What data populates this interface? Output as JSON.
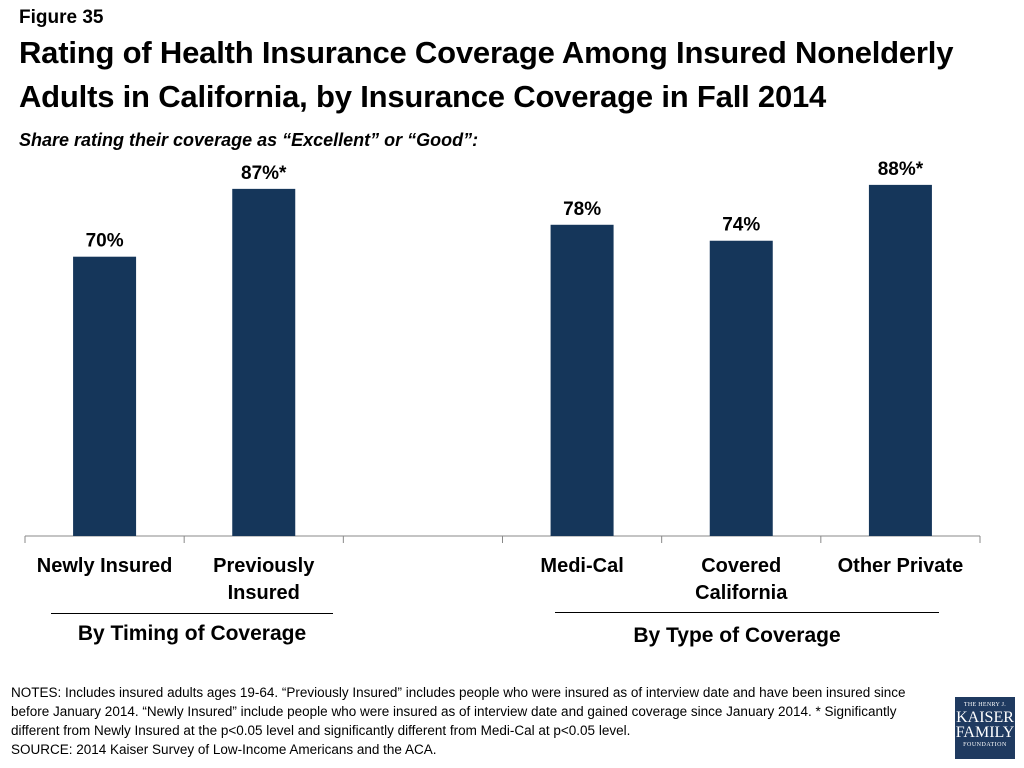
{
  "figure_label": "Figure 35",
  "title": "Rating of Health Insurance Coverage Among Insured Nonelderly Adults in California, by Insurance Coverage in Fall 2014",
  "subtitle": "Share rating their coverage as “Excellent” or “Good”:",
  "chart_data": {
    "type": "bar",
    "categories": [
      "Newly Insured",
      "Previously Insured",
      "",
      "Medi-Cal",
      "Covered California",
      "Other Private"
    ],
    "category_lines": [
      [
        "Newly Insured"
      ],
      [
        "Previously",
        "Insured"
      ],
      [],
      [
        "Medi-Cal"
      ],
      [
        "Covered",
        "California"
      ],
      [
        "Other Private"
      ]
    ],
    "values": [
      70,
      87,
      null,
      78,
      74,
      88
    ],
    "data_labels": [
      "70%",
      "87%*",
      "",
      "78%",
      "74%",
      "88%*"
    ],
    "ylim": [
      0,
      100
    ],
    "bar_color": "#15365a",
    "grid": false,
    "groups": [
      {
        "label": "By Timing of Coverage",
        "categories": [
          "Newly Insured",
          "Previously Insured"
        ]
      },
      {
        "label": "By Type of Coverage",
        "categories": [
          "Medi-Cal",
          "Covered California",
          "Other Private"
        ]
      }
    ]
  },
  "notes": "NOTES: Includes insured adults ages 19-64. “Previously Insured” includes people who were insured as of interview date and have been insured since before January 2014. “Newly Insured” include people who were insured as of interview date and gained coverage since January 2014. * Significantly different from Newly Insured at the p<0.05 level and significantly different from Medi-Cal at p<0.05 level.",
  "source": "SOURCE: 2014 Kaiser Survey of Low-Income Americans and the ACA.",
  "logo": {
    "line1": "THE HENRY J.",
    "line2": "KAISER",
    "line3": "FAMILY",
    "line4": "FOUNDATION"
  }
}
